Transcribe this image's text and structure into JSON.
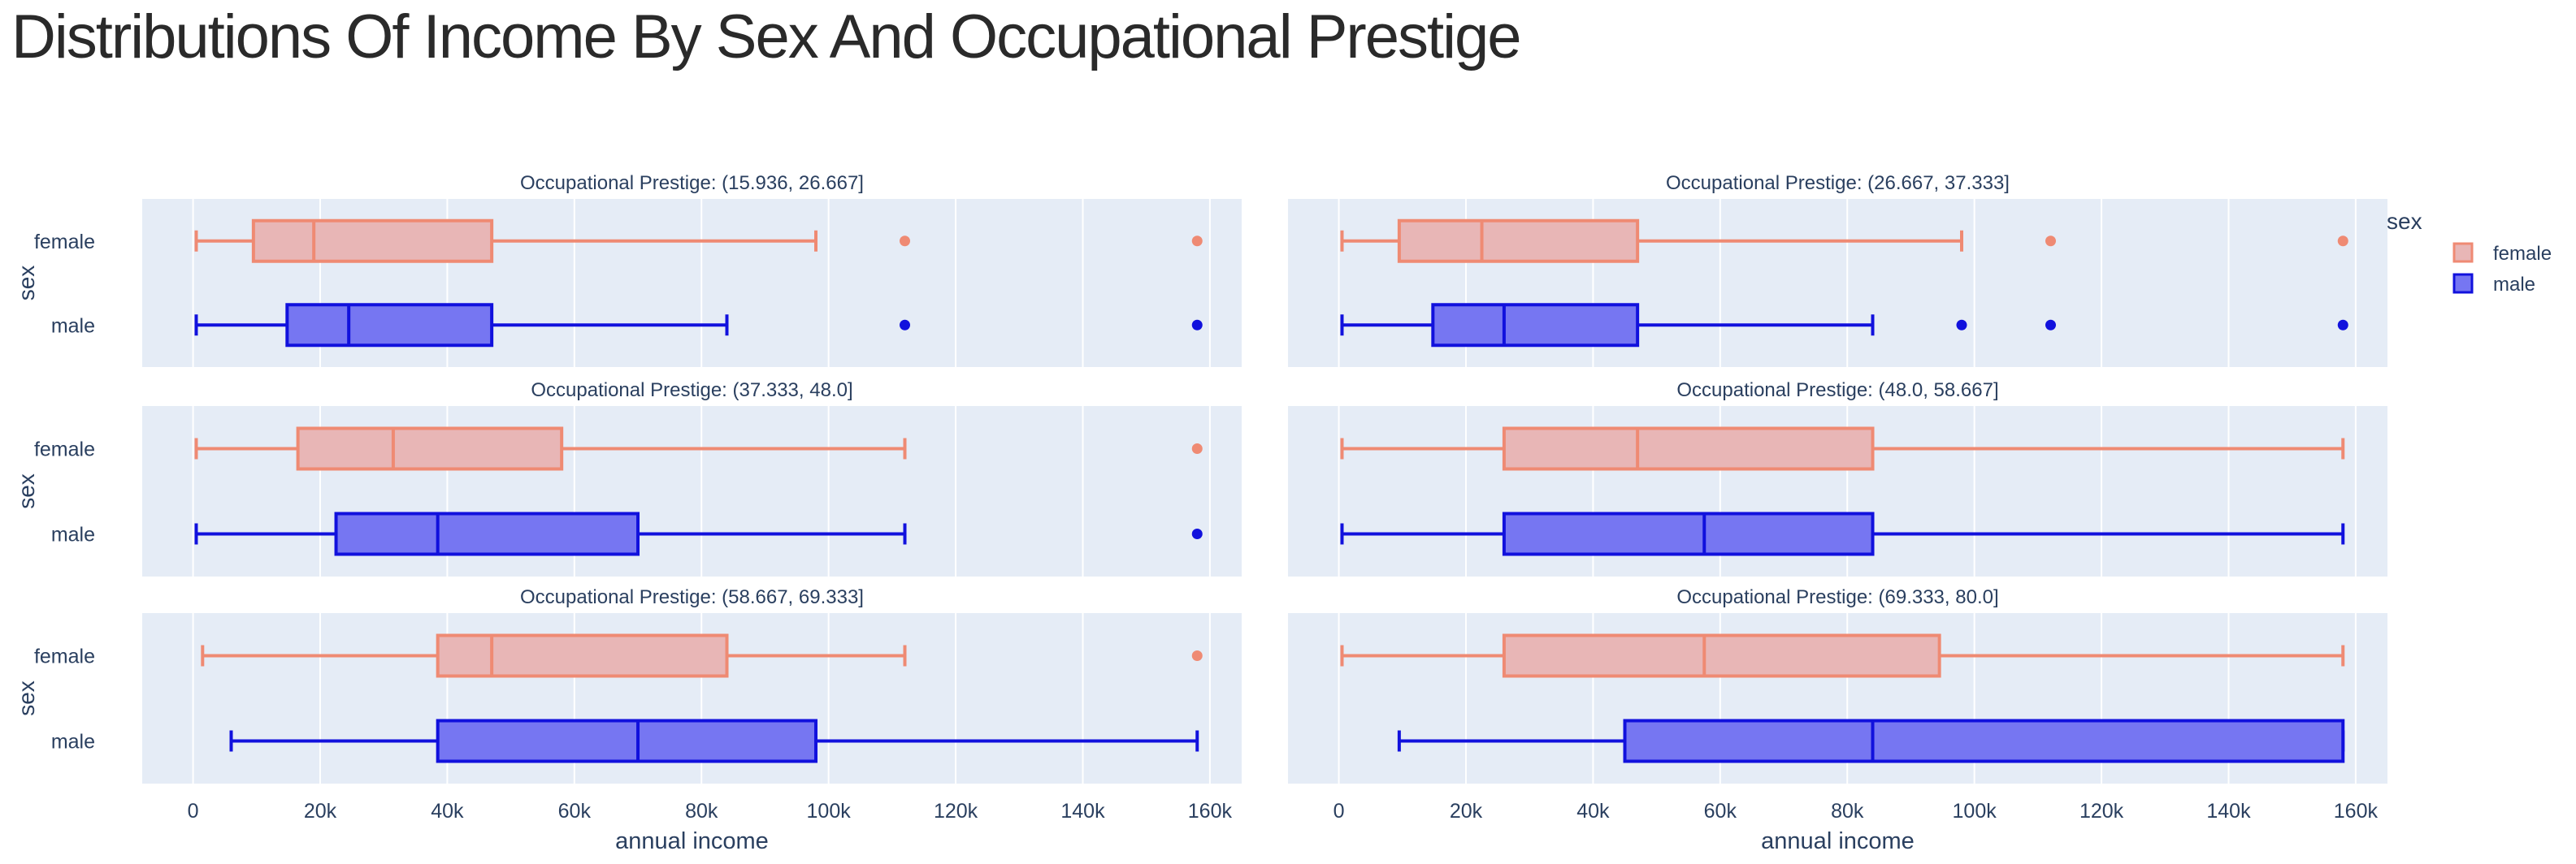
{
  "chart_data": {
    "type": "box",
    "title": "Distributions Of Income By Sex And Occupational Prestige",
    "xlabel": "annual income",
    "ylabel": "sex",
    "xlim": [
      -8000,
      165000
    ],
    "x_ticks": [
      0,
      20000,
      40000,
      60000,
      80000,
      100000,
      120000,
      140000,
      160000
    ],
    "x_tick_labels": [
      "0",
      "20k",
      "40k",
      "60k",
      "80k",
      "100k",
      "120k",
      "140k",
      "160k"
    ],
    "categories": [
      "female",
      "male"
    ],
    "grid": true,
    "legend": {
      "title": "sex",
      "placement": "top-right",
      "entries": [
        {
          "name": "female",
          "fill": "#e8b6b6",
          "line": "#ef8a73"
        },
        {
          "name": "male",
          "fill": "#7676f2",
          "line": "#1111dd"
        }
      ]
    },
    "colors": {
      "female_line": "#ef8a73",
      "female_fill": "#e8b6b6",
      "male_line": "#1111dd",
      "male_fill": "#7676f2",
      "plot_bg": "#e5ecf6",
      "text": "#2a3f5f"
    },
    "panels": [
      {
        "title": "Occupational Prestige: (15.936, 26.667]",
        "female": {
          "min": 500,
          "q1": 9500,
          "median": 19000,
          "q3": 47000,
          "max": 98000,
          "outliers": [
            112000,
            158000
          ]
        },
        "male": {
          "min": 500,
          "q1": 14800,
          "median": 24500,
          "q3": 47000,
          "max": 84000,
          "outliers": [
            112000,
            158000
          ]
        }
      },
      {
        "title": "Occupational Prestige: (26.667, 37.333]",
        "female": {
          "min": 500,
          "q1": 9500,
          "median": 22500,
          "q3": 47000,
          "max": 98000,
          "outliers": [
            112000,
            158000
          ]
        },
        "male": {
          "min": 500,
          "q1": 14800,
          "median": 26000,
          "q3": 47000,
          "max": 84000,
          "outliers": [
            98000,
            112000,
            158000
          ]
        }
      },
      {
        "title": "Occupational Prestige: (37.333, 48.0]",
        "female": {
          "min": 500,
          "q1": 16500,
          "median": 31500,
          "q3": 58000,
          "max": 112000,
          "outliers": [
            158000
          ]
        },
        "male": {
          "min": 500,
          "q1": 22500,
          "median": 38500,
          "q3": 70000,
          "max": 112000,
          "outliers": [
            158000
          ]
        }
      },
      {
        "title": "Occupational Prestige: (48.0, 58.667]",
        "female": {
          "min": 500,
          "q1": 26000,
          "median": 47000,
          "q3": 84000,
          "max": 158000,
          "outliers": []
        },
        "male": {
          "min": 500,
          "q1": 26000,
          "median": 57500,
          "q3": 84000,
          "max": 158000,
          "outliers": []
        }
      },
      {
        "title": "Occupational Prestige: (58.667, 69.333]",
        "female": {
          "min": 1500,
          "q1": 38500,
          "median": 47000,
          "q3": 84000,
          "max": 112000,
          "outliers": [
            158000
          ]
        },
        "male": {
          "min": 6000,
          "q1": 38500,
          "median": 70000,
          "q3": 98000,
          "max": 158000,
          "outliers": []
        }
      },
      {
        "title": "Occupational Prestige: (69.333, 80.0]",
        "female": {
          "min": 500,
          "q1": 26000,
          "median": 57500,
          "q3": 94500,
          "max": 158000,
          "outliers": []
        },
        "male": {
          "min": 9500,
          "q1": 45000,
          "median": 84000,
          "q3": 158000,
          "max": 158000,
          "outliers": []
        }
      }
    ]
  }
}
